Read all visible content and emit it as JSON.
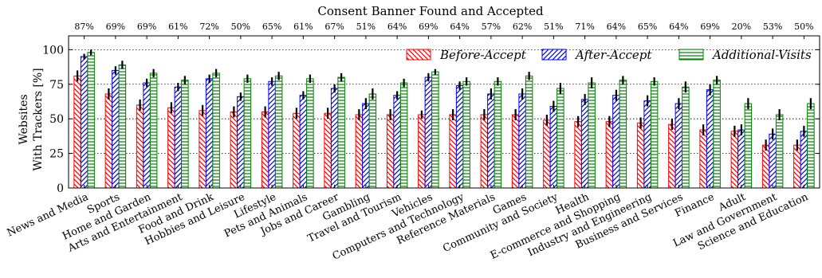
{
  "chart_data": {
    "type": "bar",
    "title": "Consent Banner Found and Accepted",
    "ylabel_line1": "Websites",
    "ylabel_line2": "With Trackers [%]",
    "xlabel": "",
    "ylim": [
      0,
      110
    ],
    "yticks": [
      0,
      25,
      50,
      75,
      100
    ],
    "grid": "dotted horizontal at 25, 50, 75, 100",
    "legend_position": "top-right",
    "categories": [
      "News and Media",
      "Sports",
      "Home and Garden",
      "Arts and Entertainment",
      "Food and Drink",
      "Hobbies and Leisure",
      "Lifestyle",
      "Pets and Animals",
      "Jobs and Career",
      "Gambling",
      "Travel and Tourism",
      "Vehicles",
      "Computers and Technology",
      "Reference Materials",
      "Games",
      "Community and Society",
      "Health",
      "E-commerce and Shopping",
      "Industry and Engineering",
      "Business and Services",
      "Finance",
      "Adult",
      "Law and Government",
      "Science and Education"
    ],
    "top_labels": [
      "87%",
      "69%",
      "69%",
      "61%",
      "72%",
      "50%",
      "65%",
      "61%",
      "67%",
      "51%",
      "64%",
      "69%",
      "64%",
      "57%",
      "62%",
      "51%",
      "71%",
      "64%",
      "65%",
      "64%",
      "69%",
      "20%",
      "53%",
      "50%"
    ],
    "series": [
      {
        "name": "Before-Accept",
        "color": "#ff0000",
        "hatch": "backslash",
        "values": [
          81,
          68,
          60,
          58,
          56,
          55,
          55,
          54,
          54,
          53,
          53,
          53,
          53,
          53,
          53,
          49,
          48,
          48,
          47,
          46,
          42,
          41,
          31,
          31
        ],
        "errors": [
          4,
          4,
          4,
          4,
          4,
          4,
          4,
          4,
          4,
          4,
          4,
          3,
          4,
          4,
          4,
          4,
          4,
          4,
          4,
          4,
          4,
          4,
          4,
          4
        ]
      },
      {
        "name": "After-Accept",
        "color": "#0000ff",
        "hatch": "slash",
        "values": [
          95,
          85,
          76,
          73,
          79,
          66,
          77,
          67,
          72,
          61,
          67,
          80,
          74,
          68,
          68,
          59,
          64,
          67,
          63,
          61,
          71,
          42,
          39,
          41
        ],
        "errors": [
          2,
          3,
          3,
          3,
          3,
          3,
          3,
          3,
          3,
          4,
          3,
          3,
          3,
          4,
          4,
          4,
          4,
          4,
          4,
          4,
          4,
          4,
          4,
          4
        ]
      },
      {
        "name": "Additional-Visits",
        "color": "#008000",
        "hatch": "horizontal",
        "values": [
          98,
          89,
          83,
          78,
          83,
          79,
          81,
          79,
          80,
          68,
          76,
          84,
          77,
          77,
          81,
          72,
          76,
          78,
          77,
          73,
          78,
          61,
          53,
          61
        ],
        "errors": [
          2,
          3,
          3,
          3,
          3,
          3,
          3,
          3,
          3,
          4,
          3,
          2,
          3,
          3,
          3,
          4,
          4,
          3,
          3,
          4,
          3,
          4,
          4,
          4
        ]
      }
    ]
  }
}
